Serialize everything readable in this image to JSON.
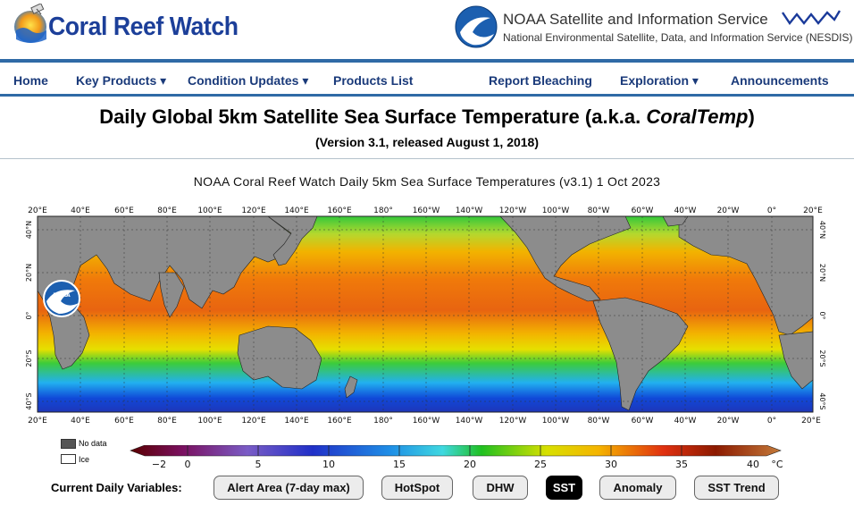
{
  "header": {
    "site_title": "Coral Reef Watch",
    "nesdis_title": "NOAA Satellite and Information Service",
    "nesdis_subtitle": "National Environmental Satellite, Data, and Information Service (NESDIS)",
    "noaa_badge": "NOAA"
  },
  "nav": {
    "home": "Home",
    "key_products": "Key Products ▾",
    "condition_updates": "Condition Updates ▾",
    "products_list": "Products List",
    "report_bleaching": "Report Bleaching",
    "exploration": "Exploration ▾",
    "announcements": "Announcements"
  },
  "page": {
    "title_main": "Daily Global 5km Satellite Sea Surface Temperature (a.k.a. ",
    "title_italic": "CoralTemp",
    "title_end": ")",
    "subtitle": "(Version 3.1, released August 1, 2018)"
  },
  "map": {
    "title": "NOAA Coral Reef Watch Daily 5km Sea Surface Temperatures  (v3.1)   1 Oct 2023",
    "lon_labels": [
      "20°E",
      "40°E",
      "60°E",
      "80°E",
      "100°E",
      "120°E",
      "140°E",
      "160°E",
      "180°",
      "160°W",
      "140°W",
      "120°W",
      "100°W",
      "80°W",
      "60°W",
      "40°W",
      "20°W",
      "0°",
      "20°E"
    ],
    "lat_labels_left": [
      "40°N",
      "20°N",
      "0°",
      "20°S",
      "40°S"
    ],
    "lat_labels_right": [
      "40°N",
      "20°N",
      "0°",
      "20°S",
      "40°S"
    ],
    "colors": {
      "land": "#8c8c8c",
      "background": "#ffffff"
    }
  },
  "legend": {
    "no_data": "No data",
    "ice": "Ice",
    "no_data_color": "#555555",
    "ice_color": "#ffffff"
  },
  "colorbar": {
    "ticks": [
      "−2",
      "0",
      "5",
      "10",
      "15",
      "20",
      "25",
      "30",
      "35",
      "40"
    ],
    "unit": "°C",
    "range": [
      -2,
      40
    ],
    "colors": [
      "#5a0000",
      "#6a2a78",
      "#7a5cc6",
      "#1a2fbf",
      "#1f8fe6",
      "#3fd0e6",
      "#20c020",
      "#f2e000",
      "#f59a00",
      "#d22000",
      "#8c1a00",
      "#c47a3a"
    ]
  },
  "variables": {
    "label": "Current Daily Variables:",
    "buttons": {
      "alert_area": "Alert Area (7-day max)",
      "hotspot": "HotSpot",
      "dhw": "DHW",
      "sst": "SST",
      "anomaly": "Anomaly",
      "sst_trend": "SST Trend"
    },
    "selected": "SST"
  }
}
